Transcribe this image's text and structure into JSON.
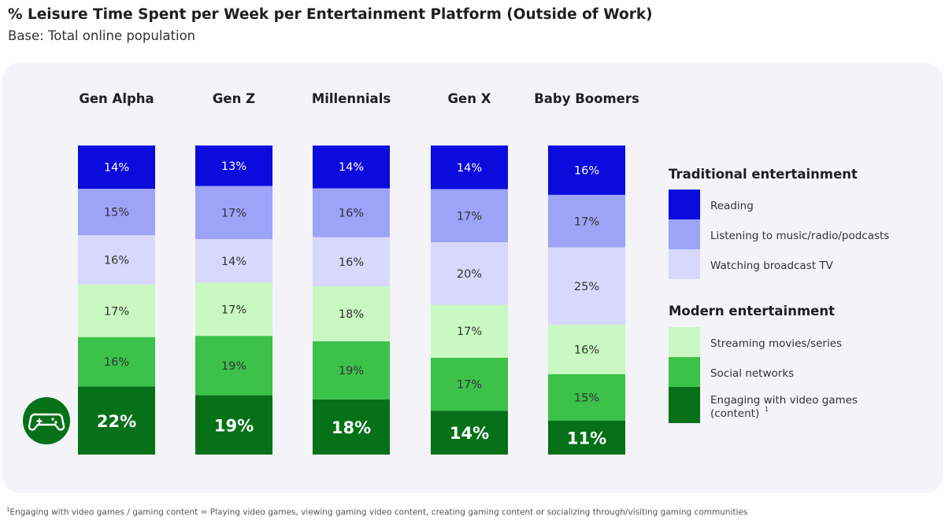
{
  "header": {
    "title": "% Leisure Time Spent per Week per Entertainment Platform (Outside of Work)",
    "subtitle": "Base: Total online population"
  },
  "footnote": {
    "marker": "1",
    "text": "Engaging with video games / gaming content = Playing video games, viewing gaming video content, creating gaming content or socializing through/visiting gaming communities"
  },
  "icons": {
    "game": "gamepad-icon"
  },
  "colors": {
    "panel": "#f3f3f8",
    "reading": "#0b0bde",
    "listening": "#9da3f7",
    "broadcast_tv": "#d7d8fb",
    "streaming": "#c9f8c2",
    "social": "#3cc14a",
    "video_games": "#067118",
    "game_icon_bg": "#067118"
  },
  "chart_data": {
    "type": "bar",
    "stacked": true,
    "orientation": "vertical",
    "categories": [
      "Gen Alpha",
      "Gen Z",
      "Millennials",
      "Gen X",
      "Baby Boomers"
    ],
    "series": [
      {
        "name": "Reading",
        "group": "Traditional entertainment",
        "color": "#0b0bde",
        "values": [
          14,
          13,
          14,
          14,
          16
        ],
        "labels": [
          "14%",
          "13%",
          "14%",
          "14%",
          "16%"
        ]
      },
      {
        "name": "Listening to music/radio/podcasts",
        "group": "Traditional entertainment",
        "color": "#9da3f7",
        "values": [
          15,
          17,
          16,
          17,
          17
        ],
        "labels": [
          "15%",
          "17%",
          "16%",
          "17%",
          "17%"
        ]
      },
      {
        "name": "Watching broadcast TV",
        "group": "Traditional entertainment",
        "color": "#d7d8fb",
        "values": [
          16,
          14,
          16,
          20,
          25
        ],
        "labels": [
          "16%",
          "14%",
          "16%",
          "20%",
          "25%"
        ]
      },
      {
        "name": "Streaming movies/series",
        "group": "Modern entertainment",
        "color": "#c9f8c2",
        "values": [
          17,
          17,
          18,
          17,
          16
        ],
        "labels": [
          "17%",
          "17%",
          "18%",
          "17%",
          "16%"
        ]
      },
      {
        "name": "Social networks",
        "group": "Modern entertainment",
        "color": "#3cc14a",
        "values": [
          16,
          19,
          19,
          17,
          15
        ],
        "labels": [
          "16%",
          "19%",
          "19%",
          "17%",
          "15%"
        ]
      },
      {
        "name": "Engaging with video games (content)",
        "name_line1": "Engaging with video games",
        "name_line2": "(content)",
        "superscript": "1",
        "group": "Modern entertainment",
        "color": "#067118",
        "values": [
          22,
          19,
          18,
          14,
          11
        ],
        "labels": [
          "22%",
          "19%",
          "18%",
          "14%",
          "11%"
        ]
      }
    ],
    "legend": {
      "position": "right",
      "groups": [
        "Traditional entertainment",
        "Modern entertainment"
      ]
    }
  }
}
